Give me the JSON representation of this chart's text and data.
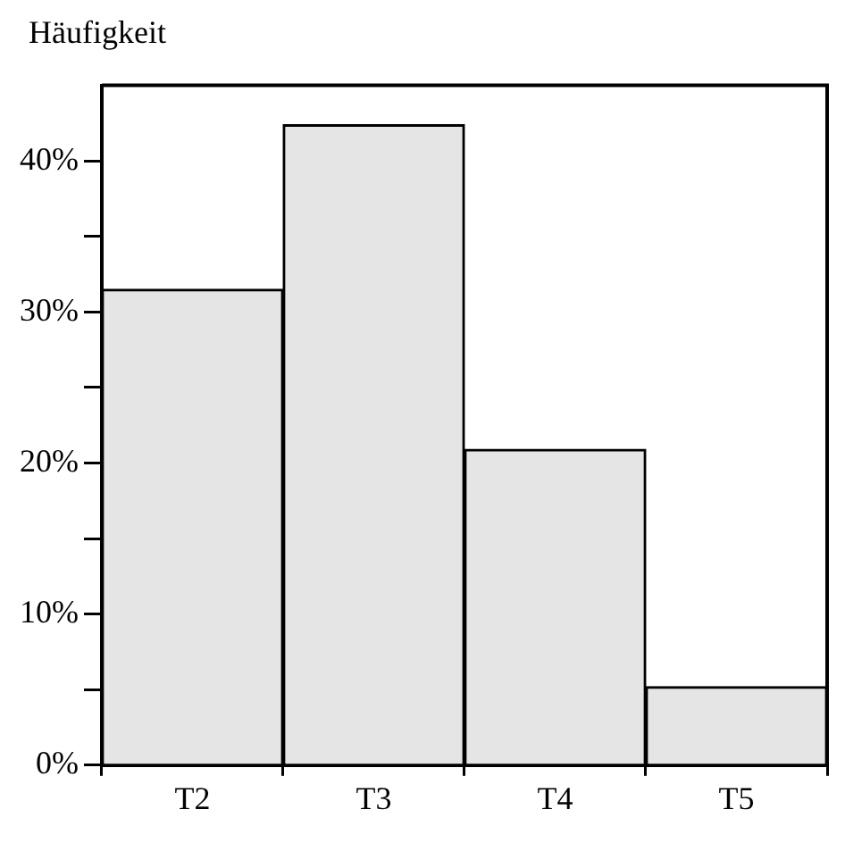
{
  "chart_data": {
    "type": "bar",
    "ylabel": "Häufigkeit",
    "categories": [
      "T2",
      "T3",
      "T4",
      "T5"
    ],
    "values": [
      31.5,
      42.4,
      20.9,
      5.2
    ],
    "color": "#e5e5e5",
    "ylim": [
      0,
      45
    ],
    "yticks": [
      {
        "value": 0,
        "label": "0%"
      },
      {
        "value": 5,
        "label": null
      },
      {
        "value": 10,
        "label": "10%"
      },
      {
        "value": 15,
        "label": null
      },
      {
        "value": 20,
        "label": "20%"
      },
      {
        "value": 25,
        "label": null
      },
      {
        "value": 30,
        "label": "30%"
      },
      {
        "value": 35,
        "label": null
      },
      {
        "value": 40,
        "label": "40%"
      }
    ]
  }
}
